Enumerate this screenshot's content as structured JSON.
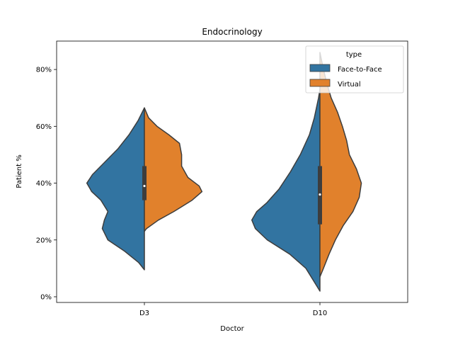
{
  "chart_data": {
    "type": "violin",
    "split": true,
    "title": "Endocrinology",
    "xlabel": "Doctor",
    "ylabel": "Patient %",
    "categories": [
      "D3",
      "D10"
    ],
    "ylim": [
      -0.02,
      0.9
    ],
    "yticks": [
      0,
      0.2,
      0.4,
      0.6,
      0.8
    ],
    "ytick_labels": [
      "0%",
      "20%",
      "40%",
      "60%",
      "80%"
    ],
    "grid": false,
    "legend": {
      "title": "type",
      "position": "top-right"
    },
    "series": [
      {
        "name": "Face-to-Face",
        "color": "#3274a1",
        "side": "left",
        "violins": [
          {
            "category": "D3",
            "profile": [
              [
                0.095,
                0.0
              ],
              [
                0.12,
                0.08
              ],
              [
                0.16,
                0.28
              ],
              [
                0.2,
                0.52
              ],
              [
                0.24,
                0.6
              ],
              [
                0.27,
                0.57
              ],
              [
                0.3,
                0.52
              ],
              [
                0.34,
                0.62
              ],
              [
                0.37,
                0.75
              ],
              [
                0.4,
                0.82
              ],
              [
                0.43,
                0.74
              ],
              [
                0.47,
                0.58
              ],
              [
                0.52,
                0.38
              ],
              [
                0.57,
                0.22
              ],
              [
                0.62,
                0.09
              ],
              [
                0.665,
                0.0
              ]
            ]
          },
          {
            "category": "D10",
            "profile": [
              [
                0.02,
                0.0
              ],
              [
                0.06,
                0.1
              ],
              [
                0.1,
                0.2
              ],
              [
                0.15,
                0.43
              ],
              [
                0.2,
                0.75
              ],
              [
                0.24,
                0.92
              ],
              [
                0.27,
                0.97
              ],
              [
                0.3,
                0.9
              ],
              [
                0.33,
                0.76
              ],
              [
                0.38,
                0.58
              ],
              [
                0.44,
                0.42
              ],
              [
                0.5,
                0.28
              ],
              [
                0.57,
                0.15
              ],
              [
                0.63,
                0.08
              ],
              [
                0.7,
                0.02
              ],
              [
                0.73,
                0.0
              ]
            ]
          }
        ]
      },
      {
        "name": "Virtual",
        "color": "#e1812c",
        "side": "right",
        "violins": [
          {
            "category": "D3",
            "profile": [
              [
                0.23,
                0.0
              ],
              [
                0.24,
                0.03
              ],
              [
                0.27,
                0.2
              ],
              [
                0.3,
                0.42
              ],
              [
                0.34,
                0.68
              ],
              [
                0.37,
                0.82
              ],
              [
                0.39,
                0.78
              ],
              [
                0.42,
                0.62
              ],
              [
                0.46,
                0.53
              ],
              [
                0.5,
                0.53
              ],
              [
                0.54,
                0.5
              ],
              [
                0.57,
                0.35
              ],
              [
                0.6,
                0.18
              ],
              [
                0.63,
                0.06
              ],
              [
                0.665,
                0.0
              ]
            ]
          },
          {
            "category": "D10",
            "profile": [
              [
                0.07,
                0.0
              ],
              [
                0.1,
                0.05
              ],
              [
                0.15,
                0.13
              ],
              [
                0.2,
                0.22
              ],
              [
                0.25,
                0.33
              ],
              [
                0.3,
                0.47
              ],
              [
                0.35,
                0.56
              ],
              [
                0.4,
                0.59
              ],
              [
                0.45,
                0.52
              ],
              [
                0.5,
                0.42
              ],
              [
                0.55,
                0.38
              ],
              [
                0.6,
                0.32
              ],
              [
                0.65,
                0.25
              ],
              [
                0.7,
                0.16
              ],
              [
                0.75,
                0.1
              ],
              [
                0.8,
                0.05
              ],
              [
                0.86,
                0.0
              ]
            ]
          }
        ]
      }
    ],
    "boxes": [
      {
        "category": "D3",
        "q1": 0.34,
        "q3": 0.46,
        "median": 0.39
      },
      {
        "category": "D10",
        "q1": 0.255,
        "q3": 0.46,
        "median": 0.36
      }
    ]
  }
}
